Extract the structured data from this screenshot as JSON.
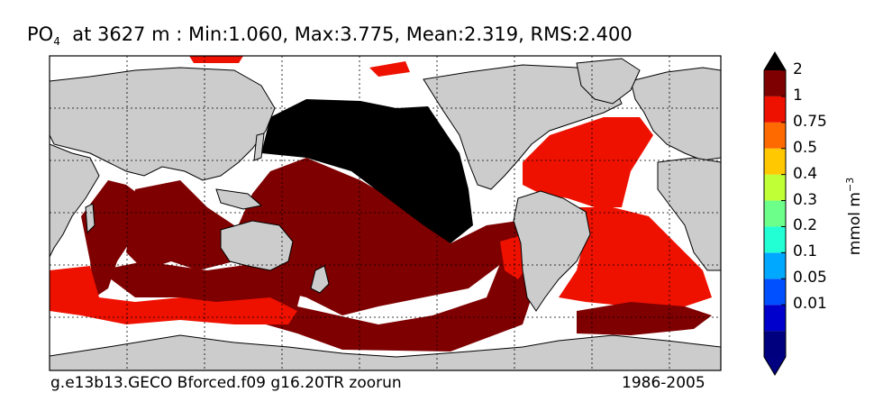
{
  "title": {
    "variable": "PO",
    "subscript": "4",
    "rest": "  at 3627 m : Min:1.060, Max:3.775, Mean:2.319, RMS:2.400"
  },
  "footer": {
    "run": "g.e13b13.GECO Bforced.f09 g16.20TR zoorun",
    "period": "1986-2005"
  },
  "colorbar": {
    "units_base": "mmol m",
    "units_exp": "−3",
    "levels": [
      {
        "label": "",
        "color": "#00007f"
      },
      {
        "label": "0.01",
        "color": "#0000cc"
      },
      {
        "label": "0.05",
        "color": "#0050ff"
      },
      {
        "label": "0.1",
        "color": "#00a8ff"
      },
      {
        "label": "0.2",
        "color": "#22ffd4"
      },
      {
        "label": "0.3",
        "color": "#6cff8a"
      },
      {
        "label": "0.4",
        "color": "#c0ff36"
      },
      {
        "label": "0.5",
        "color": "#ffc800"
      },
      {
        "label": "0.75",
        "color": "#ff6a00"
      },
      {
        "label": "1",
        "color": "#ee1100"
      },
      {
        "label": "2",
        "color": "#7f0000"
      }
    ],
    "under_color": "#000080",
    "over_color": "#000000"
  },
  "chart_data": {
    "type": "heatmap",
    "title": "PO4 at 3627 m : Min:1.060, Max:3.775, Mean:2.319, RMS:2.400",
    "depth_m": 3627,
    "min": 1.06,
    "max": 3.775,
    "mean": 2.319,
    "rms": 2.4,
    "colorbar_ticks": [
      "0.01",
      "0.05",
      "0.1",
      "0.2",
      "0.3",
      "0.4",
      "0.5",
      "0.75",
      "1",
      "2"
    ],
    "grid": true,
    "colors": {
      "land": "#cccccc",
      "ocean_missing": "#ffffff",
      "level_1_2": "#ee1100",
      "level_2_plus": "#7f0000",
      "over_max": "#000000"
    }
  }
}
